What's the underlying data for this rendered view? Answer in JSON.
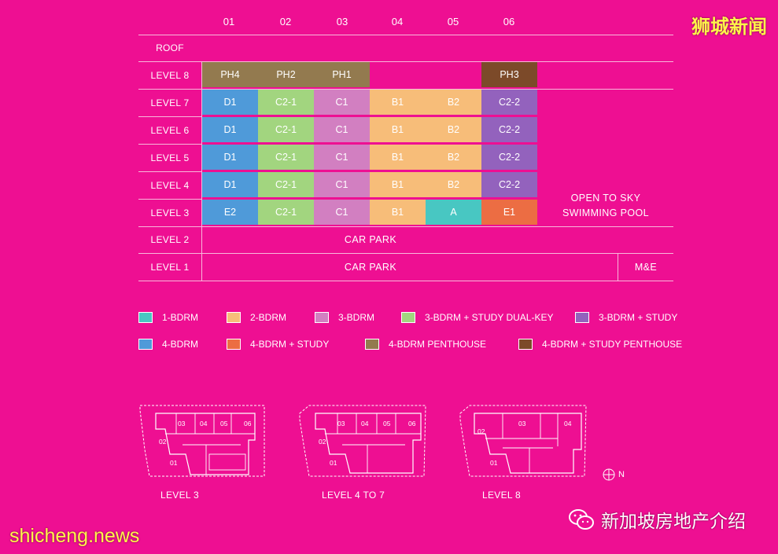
{
  "columns": [
    "01",
    "02",
    "03",
    "04",
    "05",
    "06"
  ],
  "levels": [
    "ROOF",
    "LEVEL 8",
    "LEVEL 7",
    "LEVEL 6",
    "LEVEL 5",
    "LEVEL 4",
    "LEVEL 3",
    "LEVEL 2",
    "LEVEL 1"
  ],
  "unit_rows": [
    {
      "level": "LEVEL 8",
      "cells": [
        {
          "label": "PH4",
          "type": "ph4"
        },
        {
          "label": "PH2",
          "type": "ph4"
        },
        {
          "label": "PH1",
          "type": "ph4"
        },
        {
          "label": "",
          "type": "none"
        },
        {
          "label": "",
          "type": "none"
        },
        {
          "label": "PH3",
          "type": "ph3"
        }
      ]
    },
    {
      "level": "LEVEL 7",
      "cells": [
        {
          "label": "D1",
          "type": "b4"
        },
        {
          "label": "C2-1",
          "type": "dualkey"
        },
        {
          "label": "C1",
          "type": "b3"
        },
        {
          "label": "B1",
          "type": "b2"
        },
        {
          "label": "B2",
          "type": "b2"
        },
        {
          "label": "C2-2",
          "type": "b3s"
        }
      ]
    },
    {
      "level": "LEVEL 6",
      "cells": [
        {
          "label": "D1",
          "type": "b4"
        },
        {
          "label": "C2-1",
          "type": "dualkey"
        },
        {
          "label": "C1",
          "type": "b3"
        },
        {
          "label": "B1",
          "type": "b2"
        },
        {
          "label": "B2",
          "type": "b2"
        },
        {
          "label": "C2-2",
          "type": "b3s"
        }
      ]
    },
    {
      "level": "LEVEL 5",
      "cells": [
        {
          "label": "D1",
          "type": "b4"
        },
        {
          "label": "C2-1",
          "type": "dualkey"
        },
        {
          "label": "C1",
          "type": "b3"
        },
        {
          "label": "B1",
          "type": "b2"
        },
        {
          "label": "B2",
          "type": "b2"
        },
        {
          "label": "C2-2",
          "type": "b3s"
        }
      ]
    },
    {
      "level": "LEVEL 4",
      "cells": [
        {
          "label": "D1",
          "type": "b4"
        },
        {
          "label": "C2-1",
          "type": "dualkey"
        },
        {
          "label": "C1",
          "type": "b3"
        },
        {
          "label": "B1",
          "type": "b2"
        },
        {
          "label": "B2",
          "type": "b2"
        },
        {
          "label": "C2-2",
          "type": "b3s"
        }
      ]
    },
    {
      "level": "LEVEL 3",
      "cells": [
        {
          "label": "E2",
          "type": "b4"
        },
        {
          "label": "C2-1",
          "type": "dualkey"
        },
        {
          "label": "C1",
          "type": "b3"
        },
        {
          "label": "B1",
          "type": "b2"
        },
        {
          "label": "A",
          "type": "b1"
        },
        {
          "label": "E1",
          "type": "b4s"
        }
      ]
    }
  ],
  "pool_label_line1": "OPEN TO SKY",
  "pool_label_line2": "SWIMMING POOL",
  "car_park_l2": "CAR PARK",
  "car_park_l1": "CAR PARK",
  "me_label": "M&E",
  "legend": [
    {
      "key": "b1",
      "label": "1-BDRM",
      "color": "#48c7c2"
    },
    {
      "key": "b2",
      "label": "2-BDRM",
      "color": "#f7bd79"
    },
    {
      "key": "b3",
      "label": "3-BDRM",
      "color": "#d27fc1"
    },
    {
      "key": "dualkey",
      "label": "3-BDRM + STUDY DUAL-KEY",
      "color": "#a2d57f"
    },
    {
      "key": "b3s",
      "label": "3-BDRM + STUDY",
      "color": "#9362bd"
    },
    {
      "key": "b4",
      "label": "4-BDRM",
      "color": "#4f9ad9"
    },
    {
      "key": "b4s",
      "label": "4-BDRM + STUDY",
      "color": "#ec6d43"
    },
    {
      "key": "ph4",
      "label": "4-BDRM PENTHOUSE",
      "color": "#937a4f"
    },
    {
      "key": "ph3",
      "label": "4-BDRM + STUDY PENTHOUSE",
      "color": "#7c4a29"
    }
  ],
  "plans": [
    {
      "label": "LEVEL 3",
      "units": [
        "01",
        "02",
        "03",
        "04",
        "05",
        "06"
      ]
    },
    {
      "label": "LEVEL 4 TO 7",
      "units": [
        "01",
        "02",
        "03",
        "04",
        "05",
        "06"
      ]
    },
    {
      "label": "LEVEL 8",
      "units": [
        "01",
        "02",
        "03",
        "04"
      ]
    }
  ],
  "north_label": "N",
  "watermark_top": "狮城新闻",
  "watermark_bottom": "shicheng.news",
  "wechat_label": "新加坡房地产介绍"
}
